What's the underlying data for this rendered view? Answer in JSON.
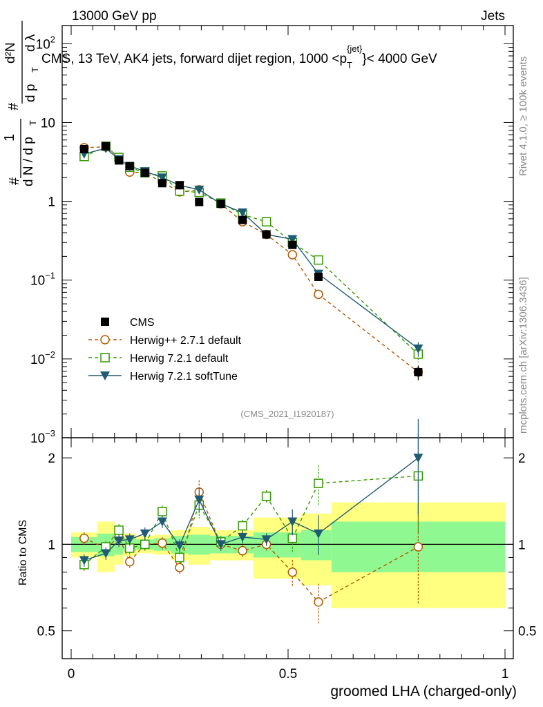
{
  "header": {
    "left": "13000 GeV pp",
    "right": "Jets"
  },
  "side_labels": {
    "rivet": "Rivet 4.1.0, ≥ 100k events",
    "mcplots": "mcplots.cern.ch [arXiv:1306.3436]"
  },
  "chart_data": {
    "type": "scatter",
    "title": "CMS, 13 TeV, AK4 jets, forward dijet region, 1000 <p_T^{jet}< 4000 GeV",
    "title_parts": {
      "prefix": "CMS, 13 TeV, AK4 jets, forward dijet region, 1000 <p",
      "sub": "T",
      "sup": "{jet}",
      "suffix": "}< 4000 GeV"
    },
    "analysis_id": "(CMS_2021_I1920187)",
    "xlabel": "groomed LHA (charged-only)",
    "ylabel_main": {
      "num_frac": "1",
      "den_frac": "d N / d p",
      "den_sub": "T",
      "hash1": "#",
      "hash2": "#",
      "num": "d²N",
      "den": "d p",
      "den2": "d λ",
      "sub": "T"
    },
    "ylabel_ratio": "Ratio to CMS",
    "xlim": [
      0,
      1
    ],
    "ylim_main": [
      0.001,
      170
    ],
    "ylim_ratio": [
      0.4,
      2.35
    ],
    "yscale": "log",
    "x_ticks": [
      "0",
      "0.5",
      "1"
    ],
    "y_ticks_main": [
      {
        "value": 100,
        "base": "10",
        "exp": "2"
      },
      {
        "value": 10,
        "base": "10",
        "exp": ""
      },
      {
        "value": 1,
        "base": "1",
        "exp": ""
      },
      {
        "value": 0.1,
        "base": "10",
        "exp": "−1"
      },
      {
        "value": 0.01,
        "base": "10",
        "exp": "−2"
      },
      {
        "value": 0.001,
        "base": "10",
        "exp": "−3"
      }
    ],
    "y_ticks_ratio": [
      {
        "value": 0.5,
        "label": "0.5"
      },
      {
        "value": 1,
        "label": "1"
      },
      {
        "value": 2,
        "label": "2"
      }
    ],
    "bins": [
      [
        0.0,
        0.06
      ],
      [
        0.06,
        0.1
      ],
      [
        0.1,
        0.12
      ],
      [
        0.12,
        0.15
      ],
      [
        0.15,
        0.19
      ],
      [
        0.19,
        0.23
      ],
      [
        0.23,
        0.27
      ],
      [
        0.27,
        0.32
      ],
      [
        0.32,
        0.37
      ],
      [
        0.37,
        0.42
      ],
      [
        0.42,
        0.48
      ],
      [
        0.48,
        0.53
      ],
      [
        0.53,
        0.6
      ],
      [
        0.6,
        1.0
      ]
    ],
    "uncertainty_bands": {
      "yellow_rel": [
        0.1,
        0.2,
        0.15,
        0.09,
        0.07,
        0.08,
        0.12,
        0.15,
        0.12,
        0.12,
        0.24,
        0.24,
        0.28,
        0.4
      ],
      "green_rel": [
        0.06,
        0.09,
        0.08,
        0.05,
        0.04,
        0.05,
        0.07,
        0.08,
        0.07,
        0.07,
        0.1,
        0.1,
        0.12,
        0.2
      ],
      "yellow_color": "#ffff80",
      "green_color": "#90f890"
    },
    "series": [
      {
        "name": "CMS",
        "marker": "square-filled",
        "color": "#000000",
        "line": "none",
        "x": [
          0.03,
          0.08,
          0.11,
          0.135,
          0.17,
          0.21,
          0.25,
          0.295,
          0.345,
          0.395,
          0.45,
          0.51,
          0.57,
          0.8
        ],
        "y": [
          4.6,
          5.0,
          3.3,
          2.8,
          2.3,
          1.7,
          1.6,
          0.98,
          0.93,
          0.58,
          0.38,
          0.28,
          0.11,
          0.0068
        ],
        "ratio": [
          1,
          1,
          1,
          1,
          1,
          1,
          1,
          1,
          1,
          1,
          1,
          1,
          1,
          1
        ]
      },
      {
        "name": "Herwig++ 2.7.1 default",
        "marker": "circle-open",
        "color": "#b35900",
        "line": "dashed",
        "x": [
          0.03,
          0.08,
          0.11,
          0.135,
          0.17,
          0.21,
          0.25,
          0.295,
          0.345,
          0.395,
          0.45,
          0.51,
          0.57,
          0.8
        ],
        "y": [
          4.8,
          4.9,
          3.6,
          2.35,
          2.3,
          1.75,
          1.32,
          1.4,
          0.93,
          0.55,
          0.38,
          0.21,
          0.066,
          0.0068
        ],
        "ratio": [
          1.05,
          0.97,
          1.06,
          0.87,
          1.0,
          1.01,
          0.83,
          1.52,
          1.0,
          0.95,
          1.0,
          0.8,
          0.63,
          0.98
        ]
      },
      {
        "name": "Herwig 7.2.1 default",
        "marker": "square-open",
        "color": "#339900",
        "line": "dashed",
        "x": [
          0.03,
          0.08,
          0.11,
          0.135,
          0.17,
          0.21,
          0.25,
          0.295,
          0.345,
          0.395,
          0.45,
          0.51,
          0.57,
          0.8
        ],
        "y": [
          3.7,
          5.0,
          3.6,
          2.7,
          2.3,
          2.1,
          1.35,
          1.3,
          0.95,
          0.68,
          0.55,
          0.3,
          0.18,
          0.0115
        ],
        "ratio": [
          0.85,
          0.98,
          1.12,
          0.97,
          1.0,
          1.3,
          0.9,
          1.37,
          1.02,
          1.16,
          1.47,
          1.05,
          1.63,
          1.73
        ]
      },
      {
        "name": "Herwig 7.2.1 softTune",
        "marker": "triangle-down-filled",
        "color": "#1f5b73",
        "line": "solid",
        "x": [
          0.03,
          0.08,
          0.11,
          0.135,
          0.17,
          0.21,
          0.25,
          0.295,
          0.345,
          0.395,
          0.45,
          0.51,
          0.57,
          0.8
        ],
        "y": [
          4.0,
          4.7,
          3.4,
          2.8,
          2.4,
          2.0,
          1.6,
          1.4,
          0.93,
          0.72,
          0.38,
          0.33,
          0.12,
          0.0135
        ],
        "ratio": [
          0.88,
          0.93,
          1.03,
          1.04,
          1.09,
          1.2,
          0.99,
          1.43,
          1.0,
          1.06,
          1.04,
          1.2,
          1.09,
          2.0
        ]
      }
    ],
    "legend": {
      "placement": "middle-left",
      "entries": [
        "CMS",
        "Herwig++ 2.7.1 default",
        "Herwig 7.2.1 default",
        "Herwig 7.2.1 softTune"
      ]
    }
  }
}
